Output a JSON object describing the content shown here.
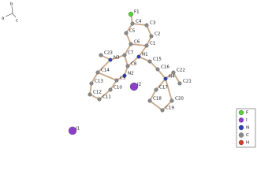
{
  "axes": [
    "b",
    "a",
    "c"
  ],
  "atoms": [
    "F1",
    "C4",
    "C3",
    "C5",
    "C2",
    "C6",
    "C1",
    "C7",
    "N1",
    "C15",
    "C23",
    "N3",
    "C8",
    "C16",
    "C22",
    "N2",
    "N4",
    "C14",
    "C9",
    "I2",
    "C21",
    "C13",
    "C10",
    "C17",
    "C12",
    "C11",
    "C18",
    "C20",
    "C19",
    "I1"
  ],
  "legend": [
    {
      "label": "F",
      "color": "#5ad13a"
    },
    {
      "label": "I",
      "color": "#8b3fc9"
    },
    {
      "label": "N",
      "color": "#2e3fb8"
    },
    {
      "label": "C",
      "color": "#8a8a8a"
    },
    {
      "label": "H",
      "color": "#d23a2a"
    }
  ]
}
